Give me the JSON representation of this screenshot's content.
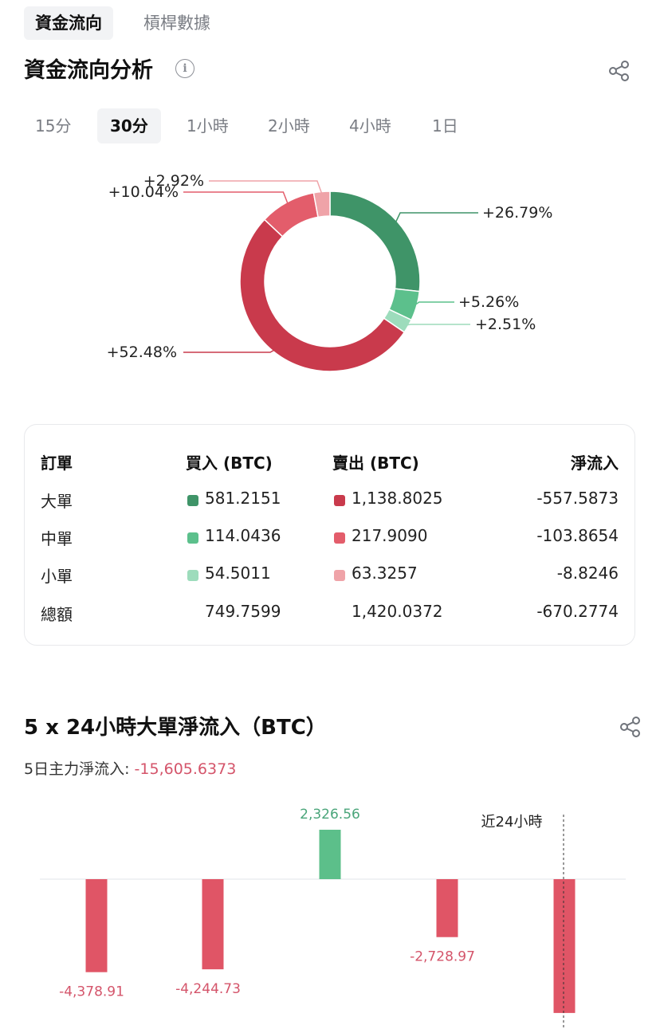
{
  "tabs": [
    {
      "label": "資金流向",
      "active": true
    },
    {
      "label": "槓桿數據",
      "active": false
    }
  ],
  "analysis": {
    "title": "資金流向分析",
    "periods": [
      {
        "label": "15分",
        "active": false
      },
      {
        "label": "30分",
        "active": true
      },
      {
        "label": "1小時",
        "active": false
      },
      {
        "label": "2小時",
        "active": false
      },
      {
        "label": "4小時",
        "active": false
      },
      {
        "label": "1日",
        "active": false
      }
    ]
  },
  "chart_data": [
    {
      "type": "pie",
      "categories": [
        "大單買入",
        "中單買入",
        "小單買入",
        "大單賣出",
        "中單賣出",
        "小單賣出"
      ],
      "values": [
        26.79,
        5.26,
        2.51,
        52.48,
        10.04,
        2.92
      ],
      "labels": [
        "+26.79%",
        "+5.26%",
        "+2.51%",
        "+52.48%",
        "+10.04%",
        "+2.92%"
      ],
      "colors": [
        "#3f9468",
        "#5cc08c",
        "#9ddcbc",
        "#c93a4c",
        "#e35d6b",
        "#efa3a8"
      ]
    },
    {
      "type": "bar",
      "title": "5 x 24小時大單淨流入（BTC）",
      "categories": [
        "",
        "",
        "",
        "",
        ""
      ],
      "values": [
        -4378.91,
        -4244.73,
        2326.56,
        -2728.97,
        -6300
      ],
      "labels": [
        "-4,378.91",
        "-4,244.73",
        "2,326.56",
        "-2,728.97",
        ""
      ],
      "annotation": "近24小時",
      "colors": {
        "positive": "#5cbf8a",
        "negative": "#e05566"
      }
    }
  ],
  "table": {
    "headers": [
      "訂單",
      "買入 (BTC)",
      "賣出 (BTC)",
      "淨流入"
    ],
    "rows": [
      {
        "name": "大單",
        "buy": "581.2151",
        "sell": "1,138.8025",
        "net": "-557.5873",
        "buy_color": "#3f9468",
        "sell_color": "#c93a4c"
      },
      {
        "name": "中單",
        "buy": "114.0436",
        "sell": "217.9090",
        "net": "-103.8654",
        "buy_color": "#5cc08c",
        "sell_color": "#e35d6b"
      },
      {
        "name": "小單",
        "buy": "54.5011",
        "sell": "63.3257",
        "net": "-8.8246",
        "buy_color": "#9ddcbc",
        "sell_color": "#efa3a8"
      },
      {
        "name": "總額",
        "buy": "749.7599",
        "sell": "1,420.0372",
        "net": "-670.2774"
      }
    ]
  },
  "netflow": {
    "title": "5 x 24小時大單淨流入（BTC）",
    "summary_label": "5日主力淨流入:",
    "summary_value": "-15,605.6373",
    "summary_color": "#d4546a"
  },
  "icons": {
    "info": "info-icon",
    "share": "share-icon"
  }
}
